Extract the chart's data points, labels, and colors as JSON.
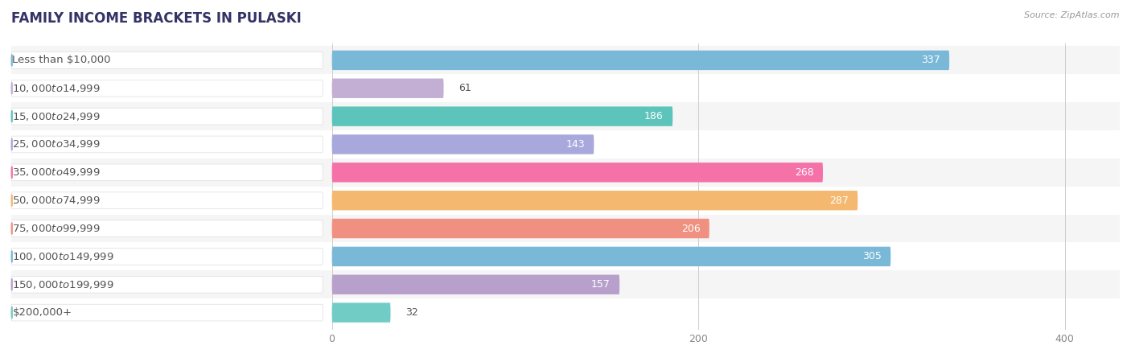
{
  "title": "FAMILY INCOME BRACKETS IN PULASKI",
  "source": "Source: ZipAtlas.com",
  "categories": [
    "Less than $10,000",
    "$10,000 to $14,999",
    "$15,000 to $24,999",
    "$25,000 to $34,999",
    "$35,000 to $49,999",
    "$50,000 to $74,999",
    "$75,000 to $99,999",
    "$100,000 to $149,999",
    "$150,000 to $199,999",
    "$200,000+"
  ],
  "values": [
    337,
    61,
    186,
    143,
    268,
    287,
    206,
    305,
    157,
    32
  ],
  "bar_colors": [
    "#7ab8d8",
    "#c4afd4",
    "#5dc4bc",
    "#a8a8dc",
    "#f472a8",
    "#f5b870",
    "#f09080",
    "#7ab8d8",
    "#b8a0cc",
    "#70ccc4"
  ],
  "xlim": [
    -175,
    430
  ],
  "xticks": [
    0,
    200,
    400
  ],
  "bar_height": 0.7,
  "background_color": "#ffffff",
  "row_bg_even": "#f5f5f5",
  "row_bg_odd": "#ffffff",
  "label_fontsize": 9.5,
  "value_fontsize": 9.0,
  "title_fontsize": 12,
  "title_color": "#333366",
  "label_text_color": "#555555",
  "value_color_inside": "#ffffff",
  "value_color_outside": "#555555",
  "value_threshold": 100
}
